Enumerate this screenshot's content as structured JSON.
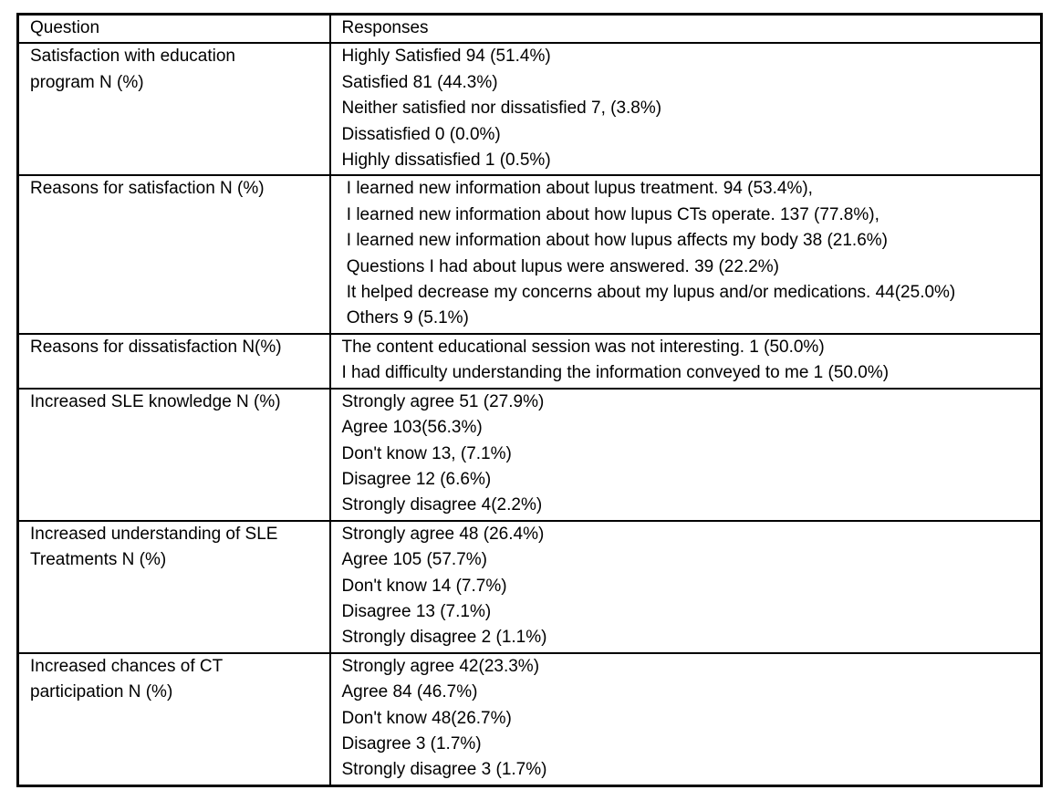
{
  "table": {
    "headers": {
      "question": "Question",
      "responses": "Responses"
    },
    "rows": [
      {
        "question": "Satisfaction with education\nprogram N (%)",
        "responses": [
          "Highly Satisfied 94 (51.4%)",
          "Satisfied 81 (44.3%)",
          "Neither satisfied nor dissatisfied 7, (3.8%)",
          "Dissatisfied 0 (0.0%)",
          "Highly dissatisfied 1 (0.5%)"
        ]
      },
      {
        "question": "Reasons for satisfaction N (%)",
        "responses": [
          " I learned new information about lupus treatment. 94 (53.4%),",
          " I learned new information about how lupus CTs operate. 137 (77.8%),",
          " I learned new information about how lupus affects my body 38 (21.6%)",
          " Questions I had about lupus were answered. 39 (22.2%)",
          " It helped decrease my concerns about my lupus and/or medications. 44(25.0%)",
          " Others 9 (5.1%)"
        ]
      },
      {
        "question": "Reasons for dissatisfaction N(%)",
        "responses": [
          "The content educational session was not interesting. 1 (50.0%)",
          "I had difficulty understanding the information conveyed to me 1 (50.0%)"
        ]
      },
      {
        "question": "Increased SLE knowledge N (%)",
        "responses": [
          "Strongly agree 51 (27.9%)",
          "Agree 103(56.3%)",
          "Don't know 13, (7.1%)",
          "Disagree 12 (6.6%)",
          "Strongly disagree 4(2.2%)"
        ]
      },
      {
        "question": "Increased understanding of SLE\nTreatments N (%)",
        "responses": [
          "Strongly agree 48 (26.4%)",
          "Agree 105 (57.7%)",
          "Don't know 14 (7.7%)",
          "Disagree 13 (7.1%)",
          "Strongly disagree 2 (1.1%)"
        ]
      },
      {
        "question": "Increased chances of CT\nparticipation N (%)",
        "responses": [
          "Strongly agree 42(23.3%)",
          "Agree 84 (46.7%)",
          "Don't know 48(26.7%)",
          "Disagree 3 (1.7%)",
          "Strongly disagree 3 (1.7%)"
        ]
      }
    ]
  },
  "colors": {
    "background": "#ffffff",
    "border": "#000000",
    "text": "#000000"
  }
}
